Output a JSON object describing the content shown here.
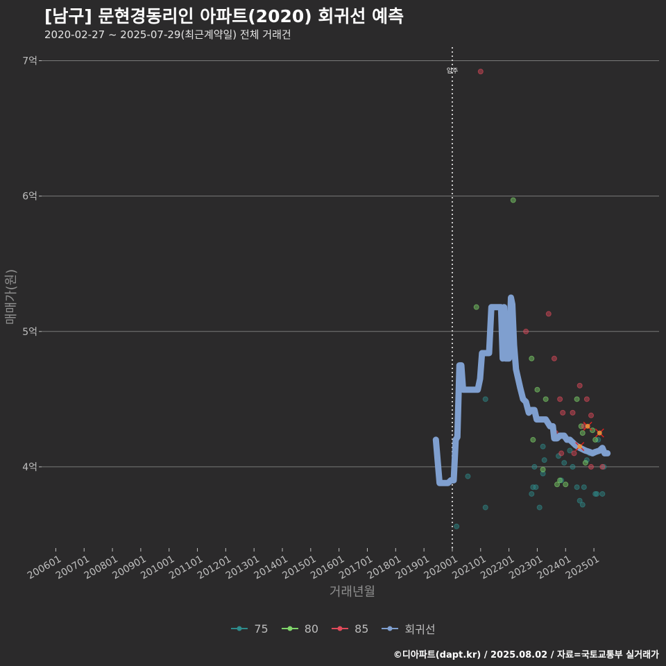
{
  "header": {
    "title": "[남구] 문현경동리인 아파트(2020) 회귀선 예측",
    "subtitle": "2020-02-27 ~ 2025-07-29(최근계약일) 전체 거래건"
  },
  "caption": "©디아파트(dapt.kr) / 2025.08.02 / 자료=국토교통부 실거래가",
  "colors": {
    "background": "#2b2a2b",
    "grid": "#7a7a7a",
    "s75": "#2e8b8b",
    "s80": "#7fd46a",
    "s85": "#e04a5a",
    "regression": "#7f9fcf",
    "highlight": "#e02020"
  },
  "chart_data": {
    "type": "scatter",
    "title": "[남구] 문현경동리인 아파트(2020) 회귀선 예측",
    "xlabel": "거래년월",
    "ylabel": "매매가(원)",
    "ylim": [
      3.4,
      7.1
    ],
    "xlim": [
      2005.5,
      2027.3
    ],
    "y_ticks": [
      {
        "value": 4,
        "label": "4억"
      },
      {
        "value": 5,
        "label": "5억"
      },
      {
        "value": 6,
        "label": "6억"
      },
      {
        "value": 7,
        "label": "7억"
      }
    ],
    "x_ticks": [
      {
        "value": 2006,
        "label": "200601"
      },
      {
        "value": 2007,
        "label": "200701"
      },
      {
        "value": 2008,
        "label": "200801"
      },
      {
        "value": 2009,
        "label": "200901"
      },
      {
        "value": 2010,
        "label": "201001"
      },
      {
        "value": 2011,
        "label": "201101"
      },
      {
        "value": 2012,
        "label": "201201"
      },
      {
        "value": 2013,
        "label": "201301"
      },
      {
        "value": 2014,
        "label": "201401"
      },
      {
        "value": 2015,
        "label": "201501"
      },
      {
        "value": 2016,
        "label": "201601"
      },
      {
        "value": 2017,
        "label": "201701"
      },
      {
        "value": 2018,
        "label": "201801"
      },
      {
        "value": 2019,
        "label": "201901"
      },
      {
        "value": 2020,
        "label": "202001"
      },
      {
        "value": 2021,
        "label": "202101"
      },
      {
        "value": 2022,
        "label": "202201"
      },
      {
        "value": 2023,
        "label": "202301"
      },
      {
        "value": 2024,
        "label": "202401"
      },
      {
        "value": 2025,
        "label": "202501"
      }
    ],
    "annotation": {
      "x": 2020.0,
      "label": "입주"
    },
    "legend": [
      {
        "name": "75",
        "color": "#2e8b8b"
      },
      {
        "name": "80",
        "color": "#7fd46a"
      },
      {
        "name": "85",
        "color": "#e04a5a"
      },
      {
        "name": "회귀선",
        "color": "#7f9fcf"
      }
    ],
    "series": [
      {
        "name": "75",
        "color": "#2e8b8b",
        "points": [
          [
            2020.15,
            3.56
          ],
          [
            2020.55,
            3.93
          ],
          [
            2021.17,
            3.7
          ],
          [
            2021.17,
            4.5
          ],
          [
            2022.8,
            3.8
          ],
          [
            2022.85,
            3.85
          ],
          [
            2022.95,
            3.85
          ],
          [
            2022.9,
            4.0
          ],
          [
            2023.08,
            3.7
          ],
          [
            2023.2,
            3.95
          ],
          [
            2023.25,
            4.05
          ],
          [
            2023.2,
            4.15
          ],
          [
            2023.3,
            4.35
          ],
          [
            2023.75,
            4.08
          ],
          [
            2023.85,
            3.9
          ],
          [
            2023.95,
            4.03
          ],
          [
            2024.15,
            4.12
          ],
          [
            2024.25,
            4.0
          ],
          [
            2024.4,
            3.85
          ],
          [
            2024.5,
            3.75
          ],
          [
            2024.6,
            3.72
          ],
          [
            2024.65,
            3.85
          ],
          [
            2024.75,
            4.05
          ],
          [
            2025.05,
            3.8
          ],
          [
            2025.1,
            3.8
          ],
          [
            2025.3,
            3.8
          ],
          [
            2025.35,
            4.0
          ],
          [
            2025.15,
            4.2
          ],
          [
            2024.85,
            4.1
          ]
        ]
      },
      {
        "name": "80",
        "color": "#7fd46a",
        "points": [
          [
            2020.85,
            5.18
          ],
          [
            2022.15,
            5.97
          ],
          [
            2022.8,
            4.8
          ],
          [
            2023.0,
            4.57
          ],
          [
            2023.3,
            4.5
          ],
          [
            2022.85,
            4.2
          ],
          [
            2023.2,
            3.98
          ],
          [
            2023.7,
            3.87
          ],
          [
            2023.8,
            3.9
          ],
          [
            2024.0,
            3.87
          ],
          [
            2024.4,
            4.5
          ],
          [
            2024.6,
            4.25
          ],
          [
            2024.7,
            4.03
          ],
          [
            2025.05,
            4.2
          ],
          [
            2024.95,
            4.27
          ],
          [
            2024.55,
            4.3
          ]
        ]
      },
      {
        "name": "85",
        "color": "#e04a5a",
        "points": [
          [
            2021.0,
            6.92
          ],
          [
            2022.6,
            5.0
          ],
          [
            2023.4,
            5.13
          ],
          [
            2023.6,
            4.8
          ],
          [
            2023.8,
            4.5
          ],
          [
            2023.65,
            4.25
          ],
          [
            2023.9,
            4.4
          ],
          [
            2024.25,
            4.4
          ],
          [
            2024.5,
            4.6
          ],
          [
            2024.75,
            4.5
          ],
          [
            2024.9,
            4.38
          ],
          [
            2024.65,
            4.3
          ],
          [
            2024.9,
            4.0
          ],
          [
            2024.3,
            4.1
          ],
          [
            2023.85,
            4.1
          ],
          [
            2025.3,
            4.0
          ]
        ]
      },
      {
        "name": "회귀선",
        "color": "#7f9fcf",
        "type": "line",
        "points": [
          [
            2019.42,
            4.2
          ],
          [
            2019.55,
            3.88
          ],
          [
            2019.65,
            3.88
          ],
          [
            2019.85,
            3.88
          ],
          [
            2019.95,
            3.9
          ],
          [
            2020.05,
            3.9
          ],
          [
            2020.12,
            4.2
          ],
          [
            2020.18,
            4.22
          ],
          [
            2020.25,
            4.75
          ],
          [
            2020.32,
            4.75
          ],
          [
            2020.38,
            4.57
          ],
          [
            2020.7,
            4.57
          ],
          [
            2020.9,
            4.57
          ],
          [
            2020.98,
            4.65
          ],
          [
            2021.05,
            4.84
          ],
          [
            2021.3,
            4.84
          ],
          [
            2021.38,
            5.18
          ],
          [
            2021.55,
            5.18
          ],
          [
            2021.72,
            5.18
          ],
          [
            2021.78,
            4.8
          ],
          [
            2021.83,
            5.18
          ],
          [
            2021.88,
            4.8
          ],
          [
            2022.0,
            4.8
          ],
          [
            2022.07,
            5.25
          ],
          [
            2022.12,
            5.2
          ],
          [
            2022.18,
            4.9
          ],
          [
            2022.25,
            4.72
          ],
          [
            2022.4,
            4.58
          ],
          [
            2022.5,
            4.5
          ],
          [
            2022.6,
            4.48
          ],
          [
            2022.7,
            4.4
          ],
          [
            2022.8,
            4.42
          ],
          [
            2022.9,
            4.42
          ],
          [
            2022.98,
            4.35
          ],
          [
            2023.12,
            4.35
          ],
          [
            2023.3,
            4.35
          ],
          [
            2023.45,
            4.3
          ],
          [
            2023.55,
            4.3
          ],
          [
            2023.6,
            4.21
          ],
          [
            2023.7,
            4.21
          ],
          [
            2023.8,
            4.23
          ],
          [
            2023.95,
            4.23
          ],
          [
            2024.05,
            4.2
          ],
          [
            2024.15,
            4.2
          ],
          [
            2024.35,
            4.16
          ],
          [
            2024.5,
            4.14
          ],
          [
            2024.7,
            4.12
          ],
          [
            2024.85,
            4.11
          ],
          [
            2024.95,
            4.1
          ],
          [
            2025.05,
            4.11
          ],
          [
            2025.2,
            4.12
          ],
          [
            2025.3,
            4.14
          ],
          [
            2025.38,
            4.1
          ],
          [
            2025.48,
            4.1
          ]
        ]
      },
      {
        "name": "highlight",
        "color": "#e02020",
        "points": [
          [
            2024.78,
            4.3
          ],
          [
            2025.2,
            4.25
          ],
          [
            2024.5,
            4.15
          ]
        ]
      }
    ]
  }
}
